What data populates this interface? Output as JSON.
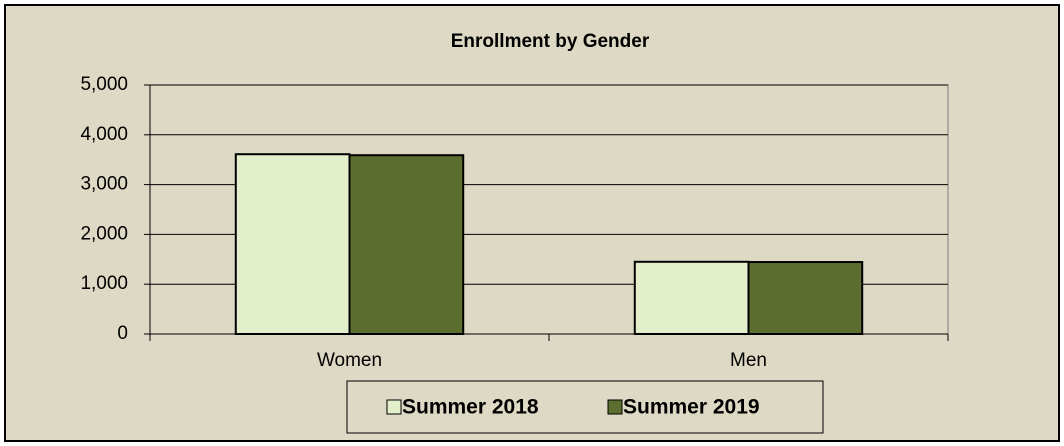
{
  "chart_data": {
    "type": "bar",
    "title": "Enrollment by Gender",
    "categories": [
      "Women",
      "Men"
    ],
    "series": [
      {
        "name": "Summer 2018",
        "color": "#e3efcb",
        "values": [
          3610,
          1450
        ]
      },
      {
        "name": "Summer 2019",
        "color": "#5b6e30",
        "values": [
          3590,
          1445
        ]
      }
    ],
    "ylim": [
      0,
      5000
    ],
    "yticks": [
      0,
      {
        "value": 1000,
        "label": "1,000"
      },
      {
        "value": 2000,
        "label": "2,000"
      },
      {
        "value": 3000,
        "label": "3,000"
      },
      {
        "value": 4000,
        "label": "4,000"
      },
      {
        "value": 5000,
        "label": "5,000"
      }
    ],
    "grid": true,
    "legend": "bottom"
  }
}
